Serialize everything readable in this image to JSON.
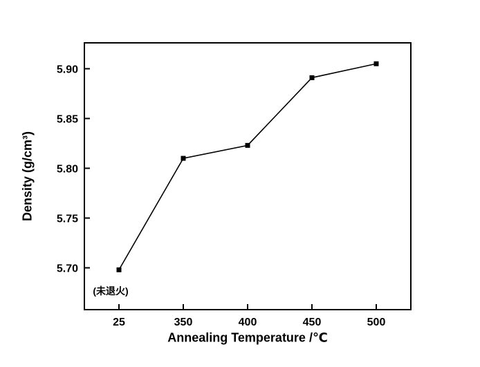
{
  "chart_data": {
    "type": "line",
    "categories": [
      "25",
      "350",
      "400",
      "450",
      "500"
    ],
    "values": [
      5.698,
      5.81,
      5.823,
      5.891,
      5.905
    ],
    "title": "",
    "xlabel": "Annealing Temperature /℃",
    "ylabel": "Density (g/cm³)",
    "yticks": [
      5.7,
      5.75,
      5.8,
      5.85,
      5.9
    ],
    "ylim": [
      5.658,
      5.926
    ],
    "annotation": "(未退火)",
    "marker": "square",
    "line_color": "#000000",
    "frame_color": "#000000",
    "background": "#ffffff",
    "legend": "none",
    "grid": "off"
  }
}
